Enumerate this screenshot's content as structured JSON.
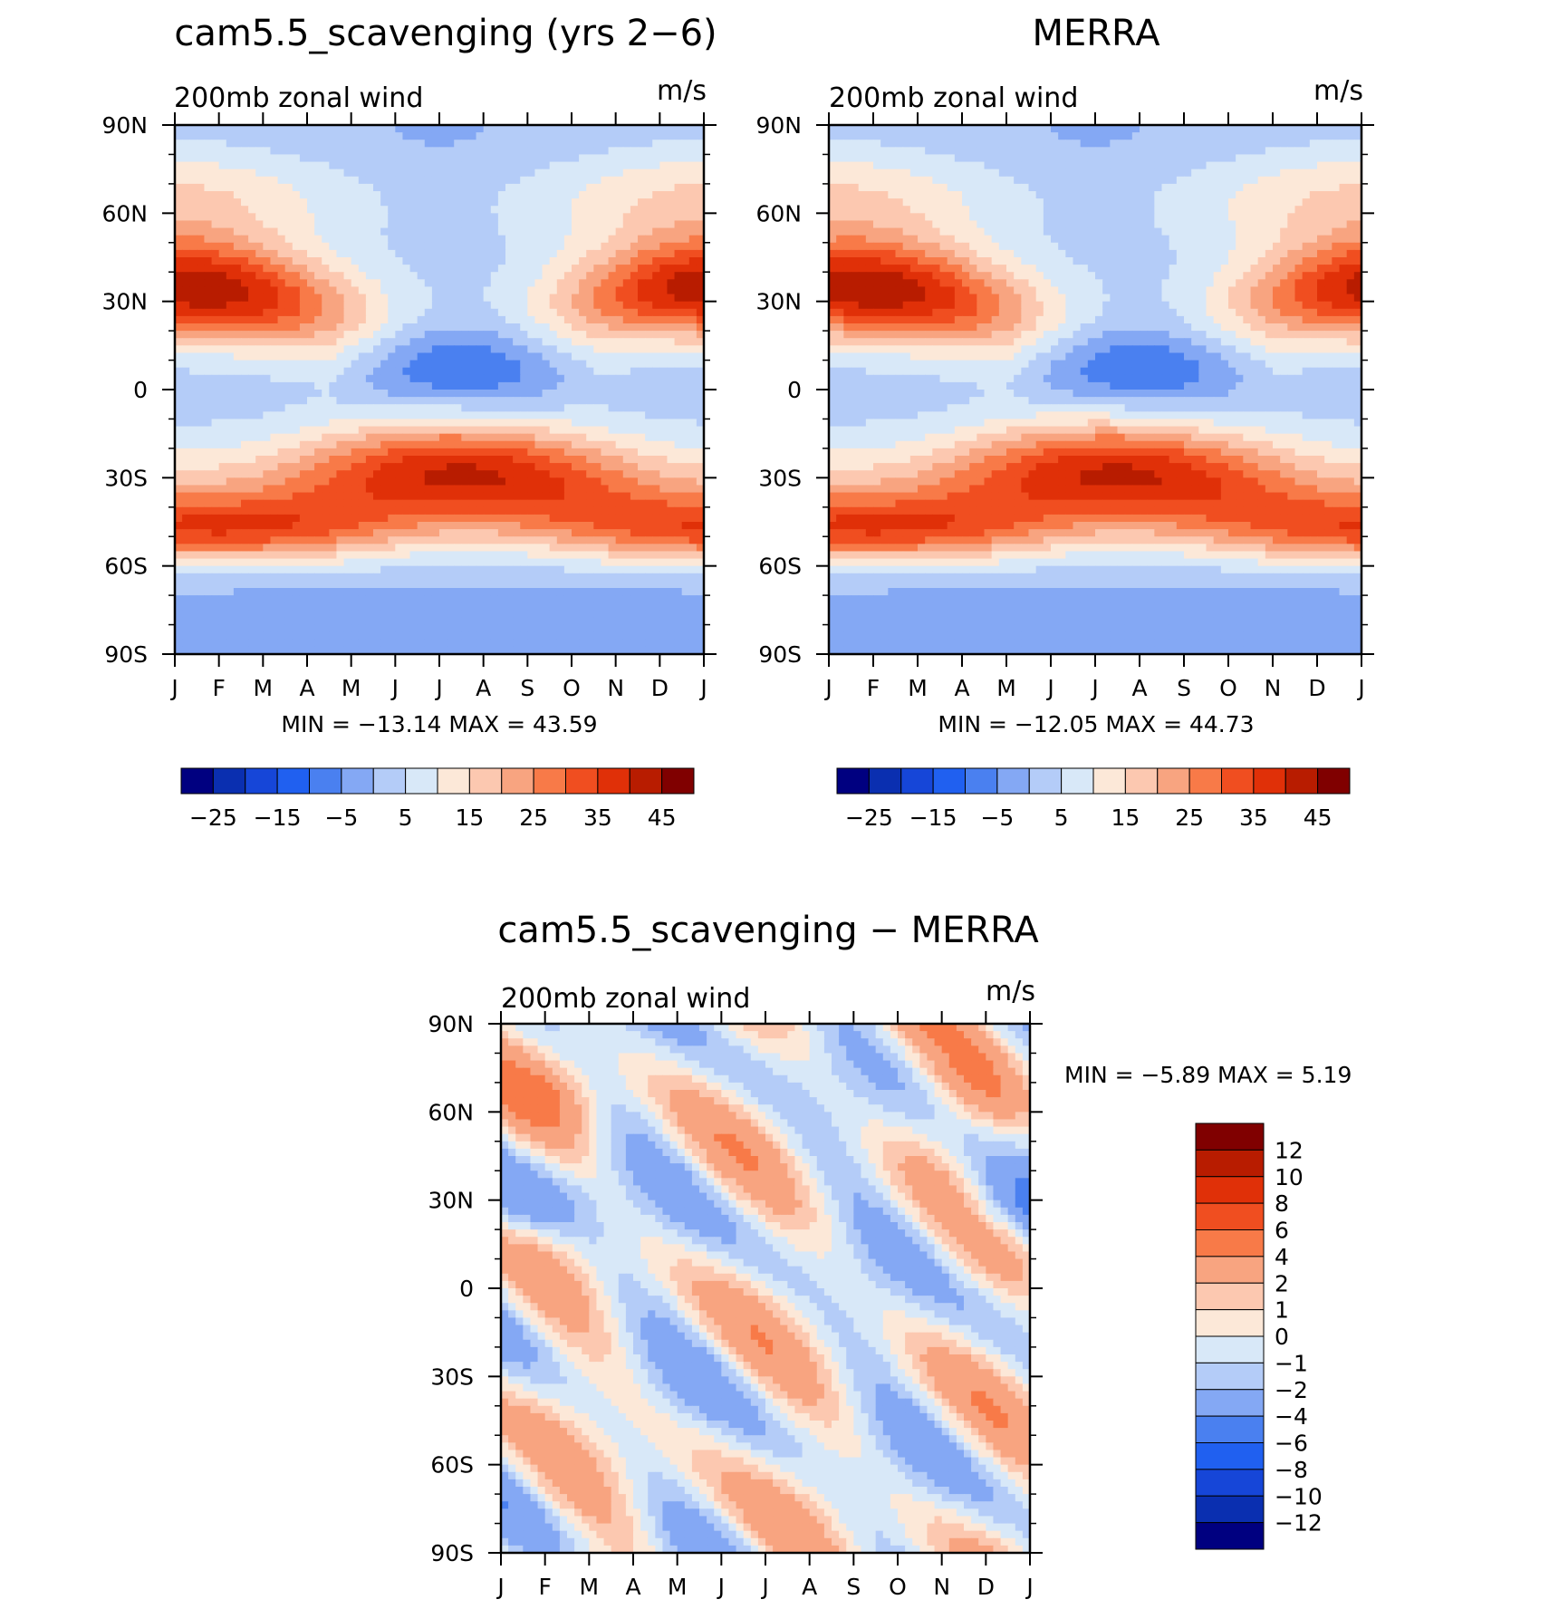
{
  "chart_data": [
    {
      "type": "heatmap",
      "id": "model",
      "title": "cam5.5_scavenging (yrs 2−6)",
      "left_label": "200mb zonal wind",
      "units": "m/s",
      "x_ticks": [
        "J",
        "F",
        "M",
        "A",
        "M",
        "J",
        "J",
        "A",
        "S",
        "O",
        "N",
        "D",
        "J"
      ],
      "y_ticks": [
        "90N",
        "60N",
        "30N",
        "0",
        "30S",
        "60S",
        "90S"
      ],
      "y_tick_values": [
        90,
        60,
        30,
        0,
        -30,
        -60,
        -90
      ],
      "xlim": [
        0,
        12
      ],
      "ylim": [
        -90,
        90
      ],
      "stats": "MIN = −13.14 MAX =   43.59",
      "colorbar_labels": [
        "−25",
        "−15",
        "−5",
        "5",
        "15",
        "25",
        "35",
        "45"
      ],
      "jets": [
        {
          "lat": 30,
          "peak": 43.59,
          "month": 1.3
        },
        {
          "lat": -30,
          "peak": 38,
          "month": 6.8
        },
        {
          "lat": -47,
          "peak": 28,
          "month": 0.5
        },
        {
          "lat": 7,
          "peak": -13.14,
          "month": 6.9
        }
      ]
    },
    {
      "type": "heatmap",
      "id": "obs",
      "title": "MERRA",
      "left_label": "200mb zonal wind",
      "units": "m/s",
      "x_ticks": [
        "J",
        "F",
        "M",
        "A",
        "M",
        "J",
        "J",
        "A",
        "S",
        "O",
        "N",
        "D",
        "J"
      ],
      "y_ticks": [
        "90N",
        "60N",
        "30N",
        "0",
        "30S",
        "60S",
        "90S"
      ],
      "y_tick_values": [
        90,
        60,
        30,
        0,
        -30,
        -60,
        -90
      ],
      "xlim": [
        0,
        12
      ],
      "ylim": [
        -90,
        90
      ],
      "stats": "MIN = −12.05 MAX =   44.73",
      "colorbar_labels": [
        "−25",
        "−15",
        "−5",
        "5",
        "15",
        "25",
        "35",
        "45"
      ],
      "jets": [
        {
          "lat": 30,
          "peak": 44.73,
          "month": 0.8
        },
        {
          "lat": -30,
          "peak": 37,
          "month": 6.2
        },
        {
          "lat": -47,
          "peak": 28,
          "month": 0.5
        },
        {
          "lat": 5,
          "peak": -12.05,
          "month": 7.0
        }
      ]
    },
    {
      "type": "heatmap",
      "id": "diff",
      "title": "cam5.5_scavenging − MERRA",
      "left_label": "200mb zonal wind",
      "units": "m/s",
      "x_ticks": [
        "J",
        "F",
        "M",
        "A",
        "M",
        "J",
        "J",
        "A",
        "S",
        "O",
        "N",
        "D",
        "J"
      ],
      "y_ticks": [
        "90N",
        "60N",
        "30N",
        "0",
        "30S",
        "60S",
        "90S"
      ],
      "y_tick_values": [
        90,
        60,
        30,
        0,
        -30,
        -60,
        -90
      ],
      "xlim": [
        0,
        12
      ],
      "ylim": [
        -90,
        90
      ],
      "stats": "MIN =   −5.89  MAX =    5.19",
      "colorbar_labels": [
        "12",
        "10",
        "8",
        "6",
        "4",
        "2",
        "1",
        "0",
        "−1",
        "−2",
        "−4",
        "−6",
        "−8",
        "−10",
        "−12"
      ]
    }
  ],
  "colors": {
    "full_levels": [
      "#000080",
      "#0a2fb0",
      "#1646d8",
      "#2060f0",
      "#4a80f0",
      "#84a8f4",
      "#b4ccf8",
      "#d8e8f8",
      "#fce8d8",
      "#fcc8b0",
      "#f8a480",
      "#f87a48",
      "#f04e20",
      "#e03008",
      "#b81c00",
      "#800000"
    ],
    "diff_levels": [
      "#800000",
      "#b81c00",
      "#e03008",
      "#f04e20",
      "#f87a48",
      "#f8a480",
      "#fcc8b0",
      "#fce8d8",
      "#d8e8f8",
      "#b4ccf8",
      "#84a8f4",
      "#4a80f0",
      "#2060f0",
      "#1646d8",
      "#0a2fb0",
      "#000080"
    ],
    "axis": "#000000"
  }
}
